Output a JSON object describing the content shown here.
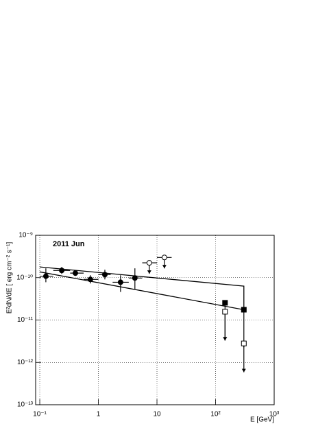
{
  "chart_data": {
    "type": "sed",
    "annotation": "2011 Jun",
    "xlabel": "E [GeV]",
    "ylabel": "E²dN/dE [ erg cm⁻² s⁻¹]",
    "log_x": true,
    "log_y": true,
    "grid": true,
    "color": "#000000",
    "xlim": [
      0.085,
      1000
    ],
    "xticks": [
      {
        "value": 0.1,
        "label": "10⁻¹"
      },
      1,
      10,
      {
        "value": 100,
        "label": "10²"
      },
      {
        "value": 1000,
        "label": "10³"
      }
    ],
    "ylim": [
      1e-13,
      1e-09
    ],
    "yticks": [
      {
        "value": 1e-13,
        "label": "10⁻¹³"
      },
      {
        "value": 1e-12,
        "label": "10⁻¹²"
      },
      {
        "value": 1e-11,
        "label": "10⁻¹¹"
      },
      {
        "value": 1e-10,
        "label": "10⁻¹⁰"
      },
      {
        "value": 1e-09,
        "label": "10⁻⁹"
      }
    ],
    "series": [
      {
        "marker": "circle",
        "upper_limit": false,
        "x": [
          0.127,
          0.237,
          0.405,
          0.73,
          1.29,
          2.39,
          4.2
        ],
        "values": [
          1.08e-10,
          1.48e-10,
          1.28e-10,
          9.1e-11,
          1.18e-10,
          7.8e-11,
          9.8e-11
        ],
        "x_low": [
          0.1,
          0.17,
          0.33,
          0.56,
          1,
          1.75,
          3.3
        ],
        "x_high": [
          0.17,
          0.33,
          0.56,
          1,
          1.62,
          3.3,
          5.6
        ],
        "y_low": [
          7.8e-11,
          1.23e-10,
          1.1e-10,
          7.3e-11,
          9.1e-11,
          4.6e-11,
          5.4e-11
        ],
        "y_high": [
          1.66e-10,
          1.79e-10,
          1.48e-10,
          1.14e-10,
          1.54e-10,
          1.14e-10,
          1.66e-10
        ]
      },
      {
        "marker": "open-circle",
        "upper_limit": true,
        "x": [
          7.4,
          13.4
        ],
        "values": [
          2.24e-10,
          3e-10
        ],
        "x_low": [
          5.6,
          10
        ],
        "x_high": [
          10,
          17.8
        ]
      },
      {
        "marker": "square",
        "upper_limit": true,
        "x": [
          145,
          304
        ],
        "values": [
          2.55e-11,
          1.75e-11
        ]
      },
      {
        "marker": "open-square",
        "upper_limit": true,
        "x": [
          145,
          304
        ],
        "values": [
          1.57e-11,
          2.8e-12
        ]
      }
    ],
    "lines": [
      {
        "x": [
          0.1,
          304,
          304
        ],
        "values": [
          1.79e-10,
          6.3e-11,
          1.75e-11
        ]
      },
      {
        "x": [
          0.1,
          304
        ],
        "values": [
          1.37e-10,
          1.75e-11
        ]
      }
    ]
  }
}
